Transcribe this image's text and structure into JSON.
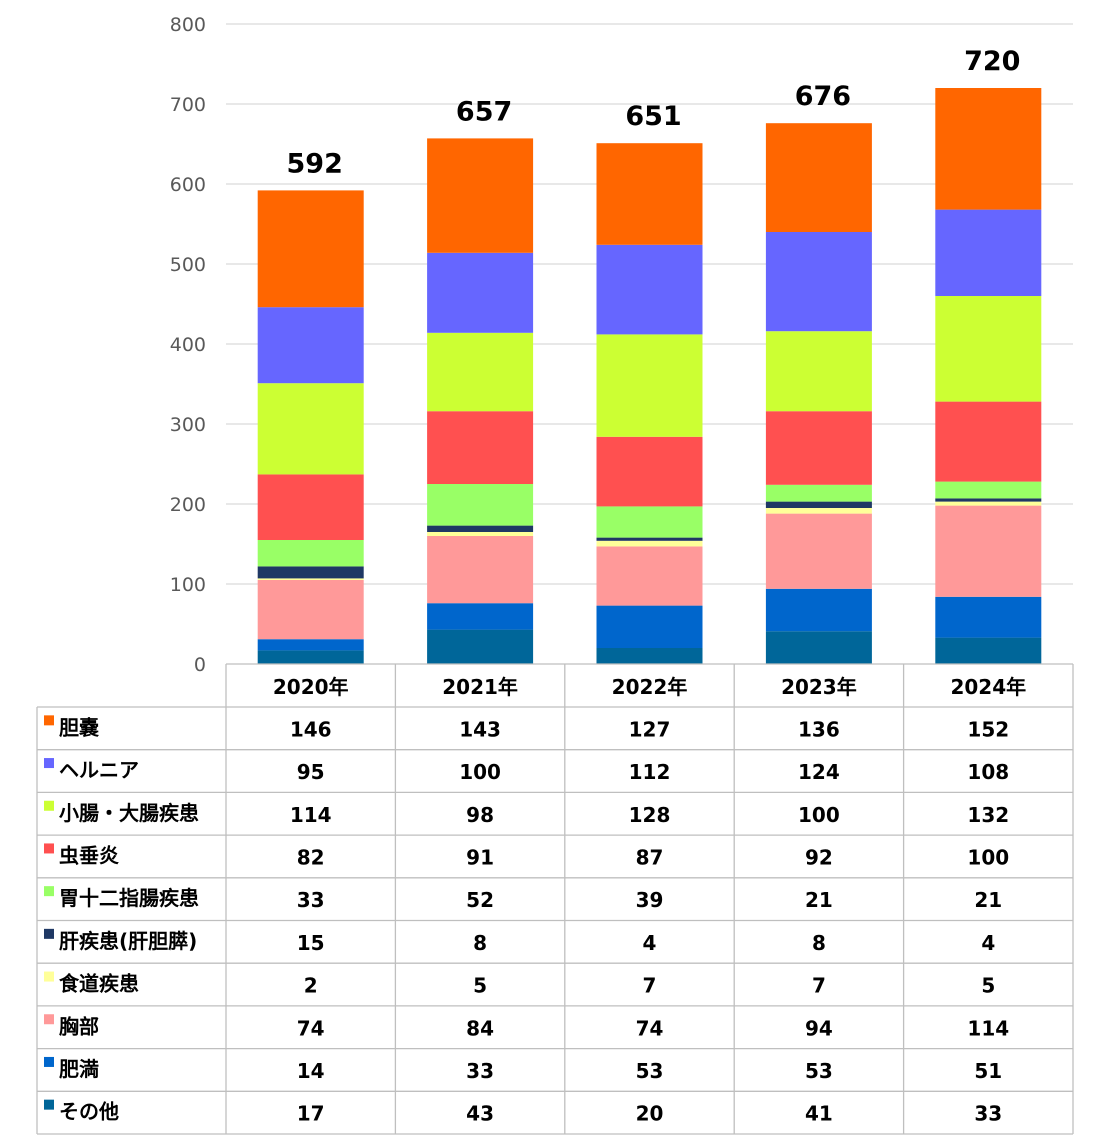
{
  "chart_data": {
    "type": "bar",
    "stacked": true,
    "categories": [
      "2020年",
      "2021年",
      "2022年",
      "2023年",
      "2024年"
    ],
    "ylim": [
      0,
      800
    ],
    "yticks": [
      0,
      100,
      200,
      300,
      400,
      500,
      600,
      700,
      800
    ],
    "grid": true,
    "legend": "data-table",
    "totals": [
      592,
      657,
      651,
      676,
      720
    ],
    "series": [
      {
        "name": "その他",
        "color": "#006699",
        "values": [
          17,
          43,
          20,
          41,
          33
        ]
      },
      {
        "name": "肥満",
        "color": "#0066cc",
        "values": [
          14,
          33,
          53,
          53,
          51
        ]
      },
      {
        "name": "胸部",
        "color": "#ff9999",
        "values": [
          74,
          84,
          74,
          94,
          114
        ]
      },
      {
        "name": "食道疾患",
        "color": "#ffff99",
        "values": [
          2,
          5,
          7,
          7,
          5
        ]
      },
      {
        "name": "肝疾患(肝胆膵)",
        "color": "#1f3864",
        "values": [
          15,
          8,
          4,
          8,
          4
        ]
      },
      {
        "name": "胃十二指腸疾患",
        "color": "#99ff66",
        "values": [
          33,
          52,
          39,
          21,
          21
        ]
      },
      {
        "name": "虫垂炎",
        "color": "#ff5050",
        "values": [
          82,
          91,
          87,
          92,
          100
        ]
      },
      {
        "name": "小腸・大腸疾患",
        "color": "#ccff33",
        "values": [
          114,
          98,
          128,
          100,
          132
        ]
      },
      {
        "name": "ヘルニア",
        "color": "#6666ff",
        "values": [
          95,
          100,
          112,
          124,
          108
        ]
      },
      {
        "name": "胆嚢",
        "color": "#ff6600",
        "values": [
          146,
          143,
          127,
          136,
          152
        ]
      }
    ],
    "table_row_order": [
      "胆嚢",
      "ヘルニア",
      "小腸・大腸疾患",
      "虫垂炎",
      "胃十二指腸疾患",
      "肝疾患(肝胆膵)",
      "食道疾患",
      "胸部",
      "肥満",
      "その他"
    ]
  }
}
